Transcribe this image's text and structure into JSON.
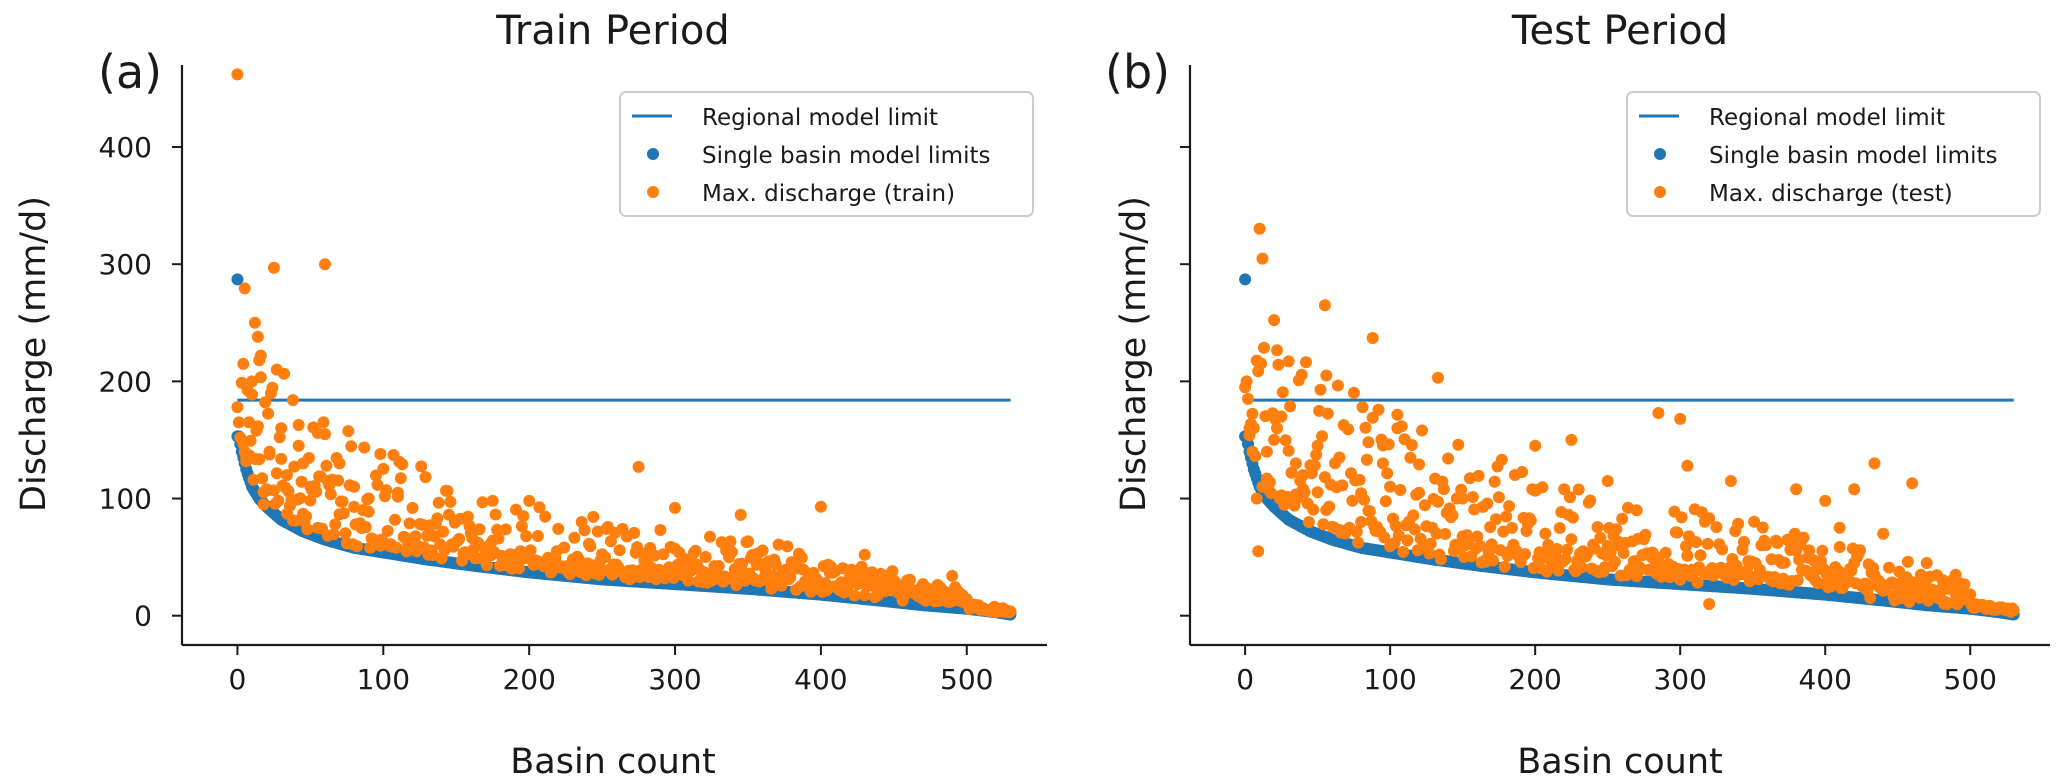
{
  "colors": {
    "blue": "#1f77b4",
    "orange": "#ff7f0e",
    "axis": "#1a1a1a"
  },
  "chart_data": [
    {
      "type": "scatter",
      "panel_label": "(a)",
      "title": "Train Period",
      "xlabel": "Basin count",
      "ylabel": "Discharge (mm/d)",
      "xlim": [
        -38,
        555
      ],
      "ylim": [
        -25,
        470
      ],
      "xticks": [
        0,
        100,
        200,
        300,
        400,
        500
      ],
      "yticks": [
        0,
        100,
        200,
        300,
        400
      ],
      "show_ytick_labels": true,
      "grid": false,
      "legend_position": "top-right",
      "legend": [
        "Regional model limit",
        "Single basin model limits",
        "Max. discharge (train)"
      ],
      "n_basins": 531,
      "regional_limit": {
        "name": "Regional model limit",
        "y": 184,
        "x_range": [
          0,
          530
        ]
      },
      "single_basin_outlier": {
        "x": 0,
        "y": 287
      },
      "single_basin_curve": [
        [
          1,
          153
        ],
        [
          3,
          140
        ],
        [
          6,
          125
        ],
        [
          10,
          110
        ],
        [
          15,
          100
        ],
        [
          20,
          93
        ],
        [
          30,
          82
        ],
        [
          45,
          72
        ],
        [
          60,
          65
        ],
        [
          80,
          58
        ],
        [
          100,
          54
        ],
        [
          130,
          48
        ],
        [
          160,
          43
        ],
        [
          200,
          37
        ],
        [
          250,
          31
        ],
        [
          300,
          27
        ],
        [
          350,
          23
        ],
        [
          400,
          18
        ],
        [
          440,
          13
        ],
        [
          470,
          9
        ],
        [
          500,
          6
        ],
        [
          520,
          3
        ],
        [
          530,
          1
        ]
      ],
      "max_discharge_series": {
        "name": "Max. discharge (train)",
        "seed": 11,
        "spread": 1.0
      },
      "max_discharge_highlights": [
        [
          0,
          462
        ],
        [
          0,
          178
        ],
        [
          1,
          165
        ],
        [
          2,
          152
        ],
        [
          4,
          147
        ],
        [
          5,
          140
        ],
        [
          6,
          135
        ],
        [
          8,
          137
        ],
        [
          10,
          200
        ],
        [
          12,
          250
        ],
        [
          14,
          238
        ],
        [
          15,
          218
        ],
        [
          16,
          222
        ],
        [
          18,
          95
        ],
        [
          20,
          108
        ],
        [
          22,
          140
        ],
        [
          25,
          297
        ],
        [
          27,
          210
        ],
        [
          30,
          160
        ],
        [
          34,
          120
        ],
        [
          38,
          184
        ],
        [
          42,
          145
        ],
        [
          45,
          130
        ],
        [
          50,
          110
        ],
        [
          55,
          156
        ],
        [
          60,
          300
        ],
        [
          62,
          115
        ],
        [
          70,
          130
        ],
        [
          80,
          110
        ],
        [
          90,
          100
        ],
        [
          98,
          138
        ],
        [
          110,
          105
        ],
        [
          120,
          92
        ],
        [
          175,
          98
        ],
        [
          200,
          98
        ],
        [
          275,
          127
        ],
        [
          300,
          92
        ],
        [
          345,
          86
        ],
        [
          400,
          93
        ],
        [
          430,
          52
        ],
        [
          450,
          30
        ],
        [
          470,
          27
        ],
        [
          490,
          34
        ]
      ]
    },
    {
      "type": "scatter",
      "panel_label": "(b)",
      "title": "Test Period",
      "xlabel": "Basin count",
      "ylabel": "Discharge (mm/d)",
      "xlim": [
        -38,
        555
      ],
      "ylim": [
        -25,
        470
      ],
      "xticks": [
        0,
        100,
        200,
        300,
        400,
        500
      ],
      "yticks": [
        0,
        100,
        200,
        300,
        400
      ],
      "show_ytick_labels": false,
      "grid": false,
      "legend_position": "top-right",
      "legend": [
        "Regional model limit",
        "Single basin model limits",
        "Max. discharge (test)"
      ],
      "n_basins": 531,
      "regional_limit": {
        "name": "Regional model limit",
        "y": 184,
        "x_range": [
          0,
          530
        ]
      },
      "single_basin_outlier": {
        "x": 0,
        "y": 287
      },
      "single_basin_curve": [
        [
          1,
          153
        ],
        [
          3,
          140
        ],
        [
          6,
          125
        ],
        [
          10,
          110
        ],
        [
          15,
          100
        ],
        [
          20,
          93
        ],
        [
          30,
          82
        ],
        [
          45,
          72
        ],
        [
          60,
          65
        ],
        [
          80,
          58
        ],
        [
          100,
          54
        ],
        [
          130,
          48
        ],
        [
          160,
          43
        ],
        [
          200,
          37
        ],
        [
          250,
          31
        ],
        [
          300,
          27
        ],
        [
          350,
          23
        ],
        [
          400,
          18
        ],
        [
          440,
          13
        ],
        [
          470,
          9
        ],
        [
          500,
          6
        ],
        [
          520,
          3
        ],
        [
          530,
          1
        ]
      ],
      "max_discharge_series": {
        "name": "Max. discharge (test)",
        "seed": 29,
        "spread": 1.35
      },
      "max_discharge_highlights": [
        [
          0,
          195
        ],
        [
          1,
          200
        ],
        [
          2,
          185
        ],
        [
          3,
          160
        ],
        [
          5,
          140
        ],
        [
          8,
          100
        ],
        [
          9,
          55
        ],
        [
          12,
          110
        ],
        [
          15,
          140
        ],
        [
          20,
          150
        ],
        [
          22,
          160
        ],
        [
          25,
          170
        ],
        [
          30,
          217
        ],
        [
          35,
          130
        ],
        [
          40,
          120
        ],
        [
          50,
          145
        ],
        [
          55,
          265
        ],
        [
          56,
          205
        ],
        [
          65,
          135
        ],
        [
          80,
          80
        ],
        [
          85,
          148
        ],
        [
          88,
          237
        ],
        [
          95,
          130
        ],
        [
          100,
          110
        ],
        [
          105,
          160
        ],
        [
          120,
          105
        ],
        [
          133,
          203
        ],
        [
          150,
          100
        ],
        [
          200,
          145
        ],
        [
          225,
          150
        ],
        [
          250,
          115
        ],
        [
          270,
          90
        ],
        [
          285,
          173
        ],
        [
          300,
          168
        ],
        [
          305,
          128
        ],
        [
          320,
          10
        ],
        [
          335,
          115
        ],
        [
          380,
          108
        ],
        [
          400,
          98
        ],
        [
          410,
          75
        ],
        [
          420,
          108
        ],
        [
          434,
          130
        ],
        [
          440,
          70
        ],
        [
          460,
          113
        ],
        [
          470,
          45
        ],
        [
          490,
          35
        ]
      ]
    }
  ]
}
